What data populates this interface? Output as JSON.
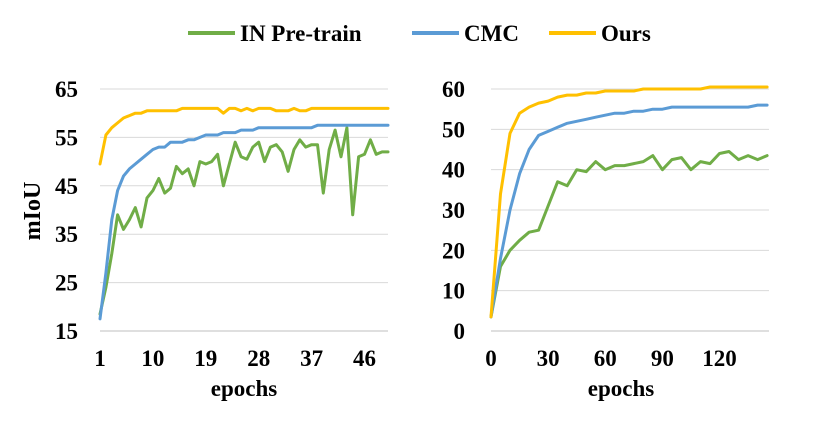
{
  "legend": [
    {
      "label": "IN Pre-train",
      "color": "#70AD47"
    },
    {
      "label": "CMC",
      "color": "#5B9BD5"
    },
    {
      "label": "Ours",
      "color": "#FFC000"
    }
  ],
  "chart_data": [
    {
      "type": "line",
      "title": "",
      "xlabel": "epochs",
      "ylabel": "mIoU",
      "xlim": [
        1,
        50
      ],
      "ylim": [
        15,
        65
      ],
      "xticks": [
        1,
        10,
        19,
        28,
        37,
        46
      ],
      "yticks": [
        15,
        25,
        35,
        45,
        55,
        65
      ],
      "grid": "horizontal",
      "series": [
        {
          "name": "IN Pre-train",
          "color": "#70AD47",
          "x": [
            1,
            2,
            3,
            4,
            5,
            6,
            7,
            8,
            9,
            10,
            11,
            12,
            13,
            14,
            15,
            16,
            17,
            18,
            19,
            20,
            21,
            22,
            23,
            24,
            25,
            26,
            27,
            28,
            29,
            30,
            31,
            32,
            33,
            34,
            35,
            36,
            37,
            38,
            39,
            40,
            41,
            42,
            43,
            44,
            45,
            46,
            47,
            48,
            49,
            50
          ],
          "values": [
            18.5,
            24,
            31,
            39,
            36,
            38,
            40.5,
            36.5,
            42.5,
            44,
            46.5,
            43.5,
            44.5,
            49,
            47.5,
            48.5,
            45,
            50,
            49.5,
            50,
            51.5,
            45,
            49.5,
            54,
            51,
            50.5,
            53,
            54,
            50,
            53,
            53.5,
            52,
            48,
            52.5,
            54.5,
            53,
            53.5,
            53.5,
            43.5,
            52.5,
            56.5,
            51,
            57,
            39,
            51,
            51.5,
            54.5,
            51.5,
            52,
            52
          ]
        },
        {
          "name": "CMC",
          "color": "#5B9BD5",
          "x": [
            1,
            2,
            3,
            4,
            5,
            6,
            7,
            8,
            9,
            10,
            11,
            12,
            13,
            14,
            15,
            16,
            17,
            18,
            19,
            20,
            21,
            22,
            23,
            24,
            25,
            26,
            27,
            28,
            29,
            30,
            31,
            32,
            33,
            34,
            35,
            36,
            37,
            38,
            39,
            40,
            41,
            42,
            43,
            44,
            45,
            46,
            47,
            48,
            49,
            50
          ],
          "values": [
            17.5,
            27,
            38,
            44,
            47,
            48.5,
            49.5,
            50.5,
            51.5,
            52.5,
            53,
            53,
            54,
            54,
            54,
            54.5,
            54.5,
            55,
            55.5,
            55.5,
            55.5,
            56,
            56,
            56,
            56.5,
            56.5,
            56.5,
            57,
            57,
            57,
            57,
            57,
            57,
            57,
            57,
            57,
            57,
            57.5,
            57.5,
            57.5,
            57.5,
            57.5,
            57.5,
            57.5,
            57.5,
            57.5,
            57.5,
            57.5,
            57.5,
            57.5
          ]
        },
        {
          "name": "Ours",
          "color": "#FFC000",
          "x": [
            1,
            2,
            3,
            4,
            5,
            6,
            7,
            8,
            9,
            10,
            11,
            12,
            13,
            14,
            15,
            16,
            17,
            18,
            19,
            20,
            21,
            22,
            23,
            24,
            25,
            26,
            27,
            28,
            29,
            30,
            31,
            32,
            33,
            34,
            35,
            36,
            37,
            38,
            39,
            40,
            41,
            42,
            43,
            44,
            45,
            46,
            47,
            48,
            49,
            50
          ],
          "values": [
            49.5,
            55.5,
            57,
            58,
            59,
            59.5,
            60,
            60,
            60.5,
            60.5,
            60.5,
            60.5,
            60.5,
            60.5,
            61,
            61,
            61,
            61,
            61,
            61,
            61,
            60,
            61,
            61,
            60.5,
            61,
            60.5,
            61,
            61,
            61,
            60.5,
            60.5,
            60.5,
            61,
            60.5,
            60.5,
            61,
            61,
            61,
            61,
            61,
            61,
            61,
            61,
            61,
            61,
            61,
            61,
            61,
            61
          ]
        }
      ]
    },
    {
      "type": "line",
      "title": "",
      "xlabel": "epochs",
      "ylabel": "",
      "xlim": [
        0,
        146
      ],
      "ylim": [
        0,
        60
      ],
      "xticks": [
        0,
        30,
        60,
        90,
        120
      ],
      "yticks": [
        0,
        10,
        20,
        30,
        40,
        50,
        60
      ],
      "grid": "horizontal",
      "series": [
        {
          "name": "IN Pre-train",
          "color": "#70AD47",
          "x": [
            0,
            5,
            10,
            15,
            20,
            25,
            30,
            35,
            40,
            45,
            50,
            55,
            60,
            65,
            70,
            75,
            80,
            85,
            90,
            95,
            100,
            105,
            110,
            115,
            120,
            125,
            130,
            135,
            140,
            145
          ],
          "values": [
            3.5,
            16,
            20,
            22.5,
            24.5,
            25,
            31,
            37,
            36,
            40,
            39.5,
            42,
            40,
            41,
            41,
            41.5,
            42,
            43.5,
            40,
            42.5,
            43,
            40,
            42,
            41.5,
            44,
            44.5,
            42.5,
            43.5,
            42.5,
            43.5
          ]
        },
        {
          "name": "CMC",
          "color": "#5B9BD5",
          "x": [
            0,
            5,
            10,
            15,
            20,
            25,
            30,
            35,
            40,
            45,
            50,
            55,
            60,
            65,
            70,
            75,
            80,
            85,
            90,
            95,
            100,
            105,
            110,
            115,
            120,
            125,
            130,
            135,
            140,
            145
          ],
          "values": [
            3.5,
            18,
            30,
            39,
            45,
            48.5,
            49.5,
            50.5,
            51.5,
            52,
            52.5,
            53,
            53.5,
            54,
            54,
            54.5,
            54.5,
            55,
            55,
            55.5,
            55.5,
            55.5,
            55.5,
            55.5,
            55.5,
            55.5,
            55.5,
            55.5,
            56,
            56
          ]
        },
        {
          "name": "Ours",
          "color": "#FFC000",
          "x": [
            0,
            5,
            10,
            15,
            20,
            25,
            30,
            35,
            40,
            45,
            50,
            55,
            60,
            65,
            70,
            75,
            80,
            85,
            90,
            95,
            100,
            105,
            110,
            115,
            120,
            125,
            130,
            135,
            140,
            145
          ],
          "values": [
            3.5,
            34,
            49,
            54,
            55.5,
            56.5,
            57,
            58,
            58.5,
            58.5,
            59,
            59,
            59.5,
            59.5,
            59.5,
            59.5,
            60,
            60,
            60,
            60,
            60,
            60,
            60,
            60.5,
            60.5,
            60.5,
            60.5,
            60.5,
            60.5,
            60.5
          ]
        }
      ]
    }
  ]
}
